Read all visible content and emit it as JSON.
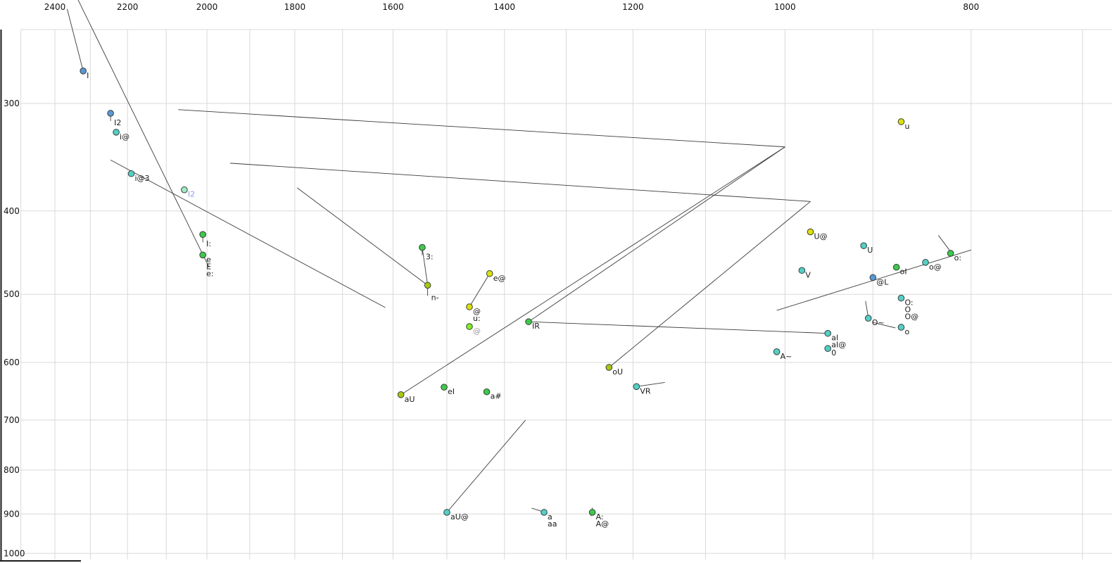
{
  "chart_data": {
    "type": "scatter",
    "title": "",
    "description": "Vowel formant plot (F2 on reversed log x-axis at top, F1 on reversed log y-axis at left), phonetic labels with diphthong trajectory lines",
    "x_axis": {
      "label": "",
      "unit": "Hz",
      "scale": "log",
      "reversed": true,
      "position": "top",
      "tick_labels": [
        "2400",
        "2200",
        "2000",
        "1800",
        "1600",
        "1400",
        "1200",
        "1000",
        "800"
      ],
      "tick_values": [
        2400,
        2200,
        2000,
        1800,
        1600,
        1400,
        1200,
        1000,
        800
      ],
      "gridlines_from": 2500,
      "gridlines_to": 700,
      "gridline_step": 100
    },
    "y_axis": {
      "label": "",
      "unit": "Hz",
      "scale": "log",
      "reversed": true,
      "position": "left",
      "tick_labels": [
        "300",
        "400",
        "500",
        "600",
        "700",
        "800",
        "900",
        "1000"
      ],
      "tick_values": [
        300,
        400,
        500,
        600,
        700,
        800,
        900,
        1000
      ],
      "gridlines_from": 300,
      "gridlines_to": 1000,
      "gridline_step": 100
    },
    "colors": {
      "blue": "#5b97d6",
      "teal": "#54cfc6",
      "green": "#3fc84b",
      "yellowgreen": "#a8c80f",
      "yellow": "#dfdf0a",
      "brightgreen": "#82ef23",
      "pale": "#a4e9c4",
      "line": "#3c3c3c",
      "grid": "#d9d9d9",
      "axis": "#1c1c1c",
      "label": "#1a1a1a",
      "pale_label": "#8f9bf0",
      "gray_label": "#9a9a9a"
    },
    "points": [
      {
        "labels": [
          "I"
        ],
        "f2": 2320,
        "f1": 275,
        "color": "blue"
      },
      {
        "labels": [
          "I2"
        ],
        "f2": 2245,
        "f1": 308,
        "color": "blue",
        "leader": 7
      },
      {
        "labels": [
          "i@"
        ],
        "f2": 2230,
        "f1": 324,
        "color": "teal"
      },
      {
        "labels": [
          "i@3"
        ],
        "f2": 2190,
        "f1": 362,
        "color": "teal"
      },
      {
        "labels": [
          "I2"
        ],
        "f2": 2055,
        "f1": 378,
        "color": "pale",
        "label_color": "#8f9bf0"
      },
      {
        "labels": [
          "I:"
        ],
        "f2": 2010,
        "f1": 426,
        "color": "green",
        "leader": 7
      },
      {
        "labels": [
          "e",
          "E",
          "e:"
        ],
        "f2": 2010,
        "f1": 450,
        "color": "green"
      },
      {
        "labels": [
          "3:"
        ],
        "f2": 1545,
        "f1": 441,
        "color": "green",
        "leader": 7
      },
      {
        "labels": [
          "n-"
        ],
        "f2": 1535,
        "f1": 488,
        "color": "yellowgreen",
        "leader": 11
      },
      {
        "labels": [
          "@",
          "u:"
        ],
        "f2": 1460,
        "f1": 517,
        "color": "yellow"
      },
      {
        "labels": [
          "@"
        ],
        "f2": 1460,
        "f1": 545,
        "color": "brightgreen",
        "label_color": "#9a9a9a"
      },
      {
        "labels": [
          "e@"
        ],
        "f2": 1425,
        "f1": 473,
        "color": "yellow"
      },
      {
        "labels": [
          "IR"
        ],
        "f2": 1360,
        "f1": 538,
        "color": "green"
      },
      {
        "labels": [
          "oU"
        ],
        "f2": 1235,
        "f1": 608,
        "color": "yellowgreen"
      },
      {
        "labels": [
          "aU"
        ],
        "f2": 1585,
        "f1": 654,
        "color": "yellowgreen"
      },
      {
        "labels": [
          "eI"
        ],
        "f2": 1505,
        "f1": 641,
        "color": "green"
      },
      {
        "labels": [
          "a#"
        ],
        "f2": 1430,
        "f1": 649,
        "color": "green"
      },
      {
        "labels": [
          "VR"
        ],
        "f2": 1195,
        "f1": 640,
        "color": "teal"
      },
      {
        "labels": [
          "aU@"
        ],
        "f2": 1500,
        "f1": 896,
        "color": "teal"
      },
      {
        "labels": [
          "a",
          "aa"
        ],
        "f2": 1335,
        "f1": 896,
        "color": "teal"
      },
      {
        "labels": [
          "A:",
          "A@"
        ],
        "f2": 1260,
        "f1": 896,
        "color": "green"
      },
      {
        "labels": [
          "U@"
        ],
        "f2": 970,
        "f1": 423,
        "color": "yellow"
      },
      {
        "labels": [
          "u"
        ],
        "f2": 870,
        "f1": 315,
        "color": "yellow"
      },
      {
        "labels": [
          "U"
        ],
        "f2": 910,
        "f1": 439,
        "color": "teal"
      },
      {
        "labels": [
          "V"
        ],
        "f2": 980,
        "f1": 469,
        "color": "teal"
      },
      {
        "labels": [
          "o:"
        ],
        "f2": 820,
        "f1": 448,
        "color": "green"
      },
      {
        "labels": [
          "o@"
        ],
        "f2": 845,
        "f1": 459,
        "color": "teal"
      },
      {
        "labels": [
          "oI"
        ],
        "f2": 875,
        "f1": 465,
        "color": "green"
      },
      {
        "labels": [
          "@L"
        ],
        "f2": 900,
        "f1": 478,
        "color": "blue"
      },
      {
        "labels": [
          "O:",
          "O",
          "O@"
        ],
        "f2": 870,
        "f1": 505,
        "color": "teal"
      },
      {
        "labels": [
          "O~"
        ],
        "f2": 905,
        "f1": 533,
        "color": "teal"
      },
      {
        "labels": [
          "o"
        ],
        "f2": 870,
        "f1": 546,
        "color": "teal"
      },
      {
        "labels": [
          "aI",
          "aI@"
        ],
        "f2": 950,
        "f1": 555,
        "color": "teal"
      },
      {
        "labels": [
          "0"
        ],
        "f2": 950,
        "f1": 578,
        "color": "teal"
      },
      {
        "labels": [
          "A~"
        ],
        "f2": 1010,
        "f1": 583,
        "color": "teal"
      }
    ],
    "lines": [
      [
        2365,
        233,
        2320,
        275
      ],
      [
        2335,
        227,
        1995,
        465
      ],
      [
        2245,
        349,
        1615,
        518
      ],
      [
        2070,
        305,
        1000,
        337
      ],
      [
        1945,
        352,
        970,
        390
      ],
      [
        1795,
        376,
        1535,
        488
      ],
      [
        1545,
        441,
        1535,
        488
      ],
      [
        1425,
        473,
        1460,
        517
      ],
      [
        1360,
        538,
        1000,
        337
      ],
      [
        1585,
        654,
        1000,
        337
      ],
      [
        1235,
        608,
        970,
        390
      ],
      [
        1500,
        896,
        1365,
        700
      ],
      [
        1195,
        640,
        1155,
        633
      ],
      [
        1355,
        886,
        1338,
        894
      ],
      [
        1260,
        885,
        1262,
        905
      ],
      [
        832,
        427,
        820,
        446
      ],
      [
        908,
        509,
        905,
        532
      ],
      [
        900,
        539,
        876,
        547
      ],
      [
        800,
        444,
        1010,
        522
      ],
      [
        1360,
        538,
        950,
        555
      ]
    ]
  }
}
